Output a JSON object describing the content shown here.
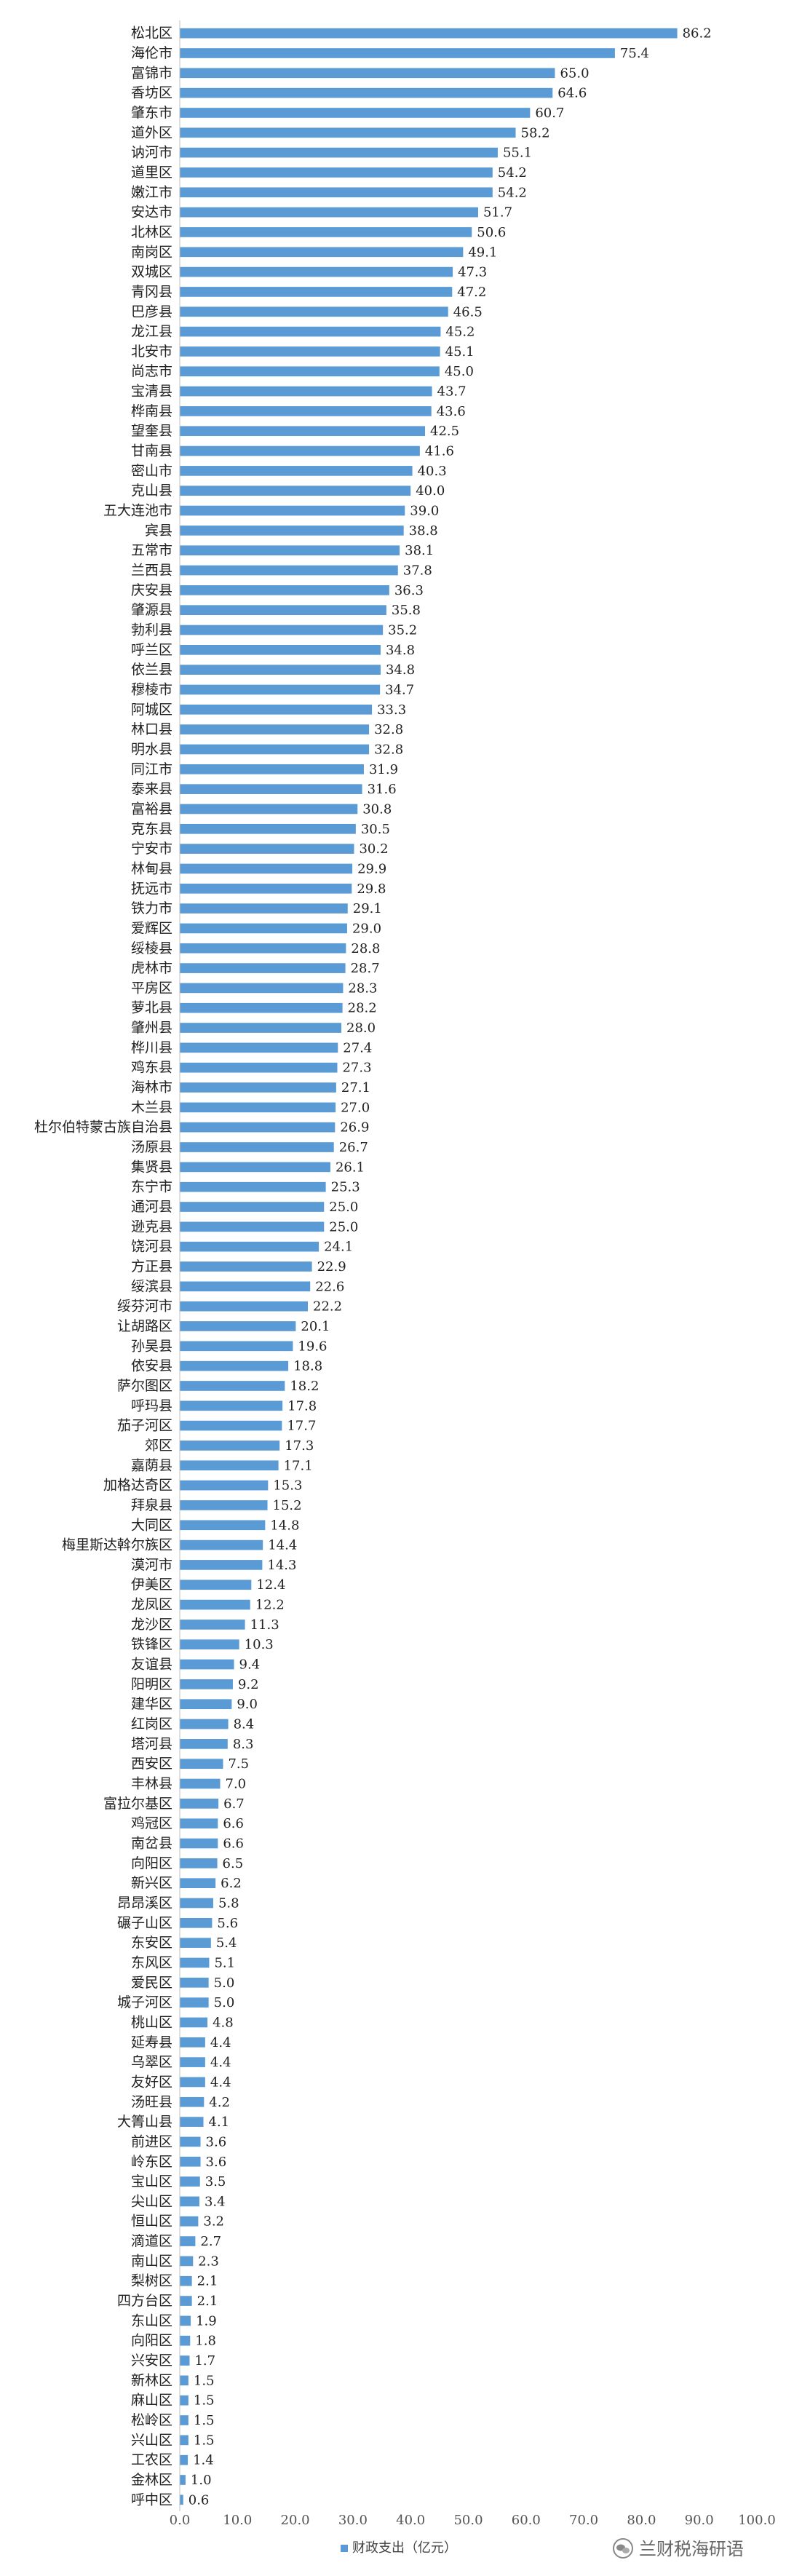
{
  "chart_data": {
    "type": "bar",
    "orientation": "horizontal",
    "categories": [
      "松北区",
      "海伦市",
      "富锦市",
      "香坊区",
      "肇东市",
      "道外区",
      "讷河市",
      "道里区",
      "嫩江市",
      "安达市",
      "北林区",
      "南岗区",
      "双城区",
      "青冈县",
      "巴彦县",
      "龙江县",
      "北安市",
      "尚志市",
      "宝清县",
      "桦南县",
      "望奎县",
      "甘南县",
      "密山市",
      "克山县",
      "五大连池市",
      "宾县",
      "五常市",
      "兰西县",
      "庆安县",
      "肇源县",
      "勃利县",
      "呼兰区",
      "依兰县",
      "穆棱市",
      "阿城区",
      "林口县",
      "明水县",
      "同江市",
      "泰来县",
      "富裕县",
      "克东县",
      "宁安市",
      "林甸县",
      "抚远市",
      "铁力市",
      "爱辉区",
      "绥棱县",
      "虎林市",
      "平房区",
      "萝北县",
      "肇州县",
      "桦川县",
      "鸡东县",
      "海林市",
      "木兰县",
      "杜尔伯特蒙古族自治县",
      "汤原县",
      "集贤县",
      "东宁市",
      "通河县",
      "逊克县",
      "饶河县",
      "方正县",
      "绥滨县",
      "绥芬河市",
      "让胡路区",
      "孙吴县",
      "依安县",
      "萨尔图区",
      "呼玛县",
      "茄子河区",
      "郊区",
      "嘉荫县",
      "加格达奇区",
      "拜泉县",
      "大同区",
      "梅里斯达斡尔族区",
      "漠河市",
      "伊美区",
      "龙凤区",
      "龙沙区",
      "铁锋区",
      "友谊县",
      "阳明区",
      "建华区",
      "红岗区",
      "塔河县",
      "西安区",
      "丰林县",
      "富拉尔基区",
      "鸡冠区",
      "南岔县",
      "向阳区",
      "新兴区",
      "昂昂溪区",
      "碾子山区",
      "东安区",
      "东风区",
      "爱民区",
      "城子河区",
      "桃山区",
      "延寿县",
      "乌翠区",
      "友好区",
      "汤旺县",
      "大箐山县",
      "前进区",
      "岭东区",
      "宝山区",
      "尖山区",
      "恒山区",
      "滴道区",
      "南山区",
      "梨树区",
      "四方台区",
      "东山区",
      "向阳区",
      "兴安区",
      "新林区",
      "麻山区",
      "松岭区",
      "兴山区",
      "工农区",
      "金林区",
      "呼中区"
    ],
    "values": [
      86.2,
      75.4,
      65.0,
      64.6,
      60.7,
      58.2,
      55.1,
      54.2,
      54.2,
      51.7,
      50.6,
      49.1,
      47.3,
      47.2,
      46.5,
      45.2,
      45.1,
      45.0,
      43.7,
      43.6,
      42.5,
      41.6,
      40.3,
      40.0,
      39.0,
      38.8,
      38.1,
      37.8,
      36.3,
      35.8,
      35.2,
      34.8,
      34.8,
      34.7,
      33.3,
      32.8,
      32.8,
      31.9,
      31.6,
      30.8,
      30.5,
      30.2,
      29.9,
      29.8,
      29.1,
      29.0,
      28.8,
      28.7,
      28.3,
      28.2,
      28.0,
      27.4,
      27.3,
      27.1,
      27.0,
      26.9,
      26.7,
      26.1,
      25.3,
      25.0,
      25.0,
      24.1,
      22.9,
      22.6,
      22.2,
      20.1,
      19.6,
      18.8,
      18.2,
      17.8,
      17.7,
      17.3,
      17.1,
      15.3,
      15.2,
      14.8,
      14.4,
      14.3,
      12.4,
      12.2,
      11.3,
      10.3,
      9.4,
      9.2,
      9.0,
      8.4,
      8.3,
      7.5,
      7.0,
      6.7,
      6.6,
      6.6,
      6.5,
      6.2,
      5.8,
      5.6,
      5.4,
      5.1,
      5.0,
      5.0,
      4.8,
      4.4,
      4.4,
      4.4,
      4.2,
      4.1,
      3.6,
      3.6,
      3.5,
      3.4,
      3.2,
      2.7,
      2.3,
      2.1,
      2.1,
      1.9,
      1.8,
      1.7,
      1.5,
      1.5,
      1.5,
      1.5,
      1.4,
      1.0,
      0.6
    ],
    "series_name": "财政支出（亿元）",
    "xlim": [
      0,
      100
    ],
    "xticks": [
      "0.0",
      "10.0",
      "20.0",
      "30.0",
      "40.0",
      "50.0",
      "60.0",
      "70.0",
      "80.0",
      "90.0",
      "100.0"
    ],
    "value_format": "1 decimal",
    "title": "",
    "xlabel": "",
    "ylabel": "",
    "legend_position": "bottom-center",
    "grid": false,
    "bar_color": "#5b9bd5"
  },
  "watermark": {
    "text": "兰财税海研语",
    "icon": "wechat-icon"
  }
}
